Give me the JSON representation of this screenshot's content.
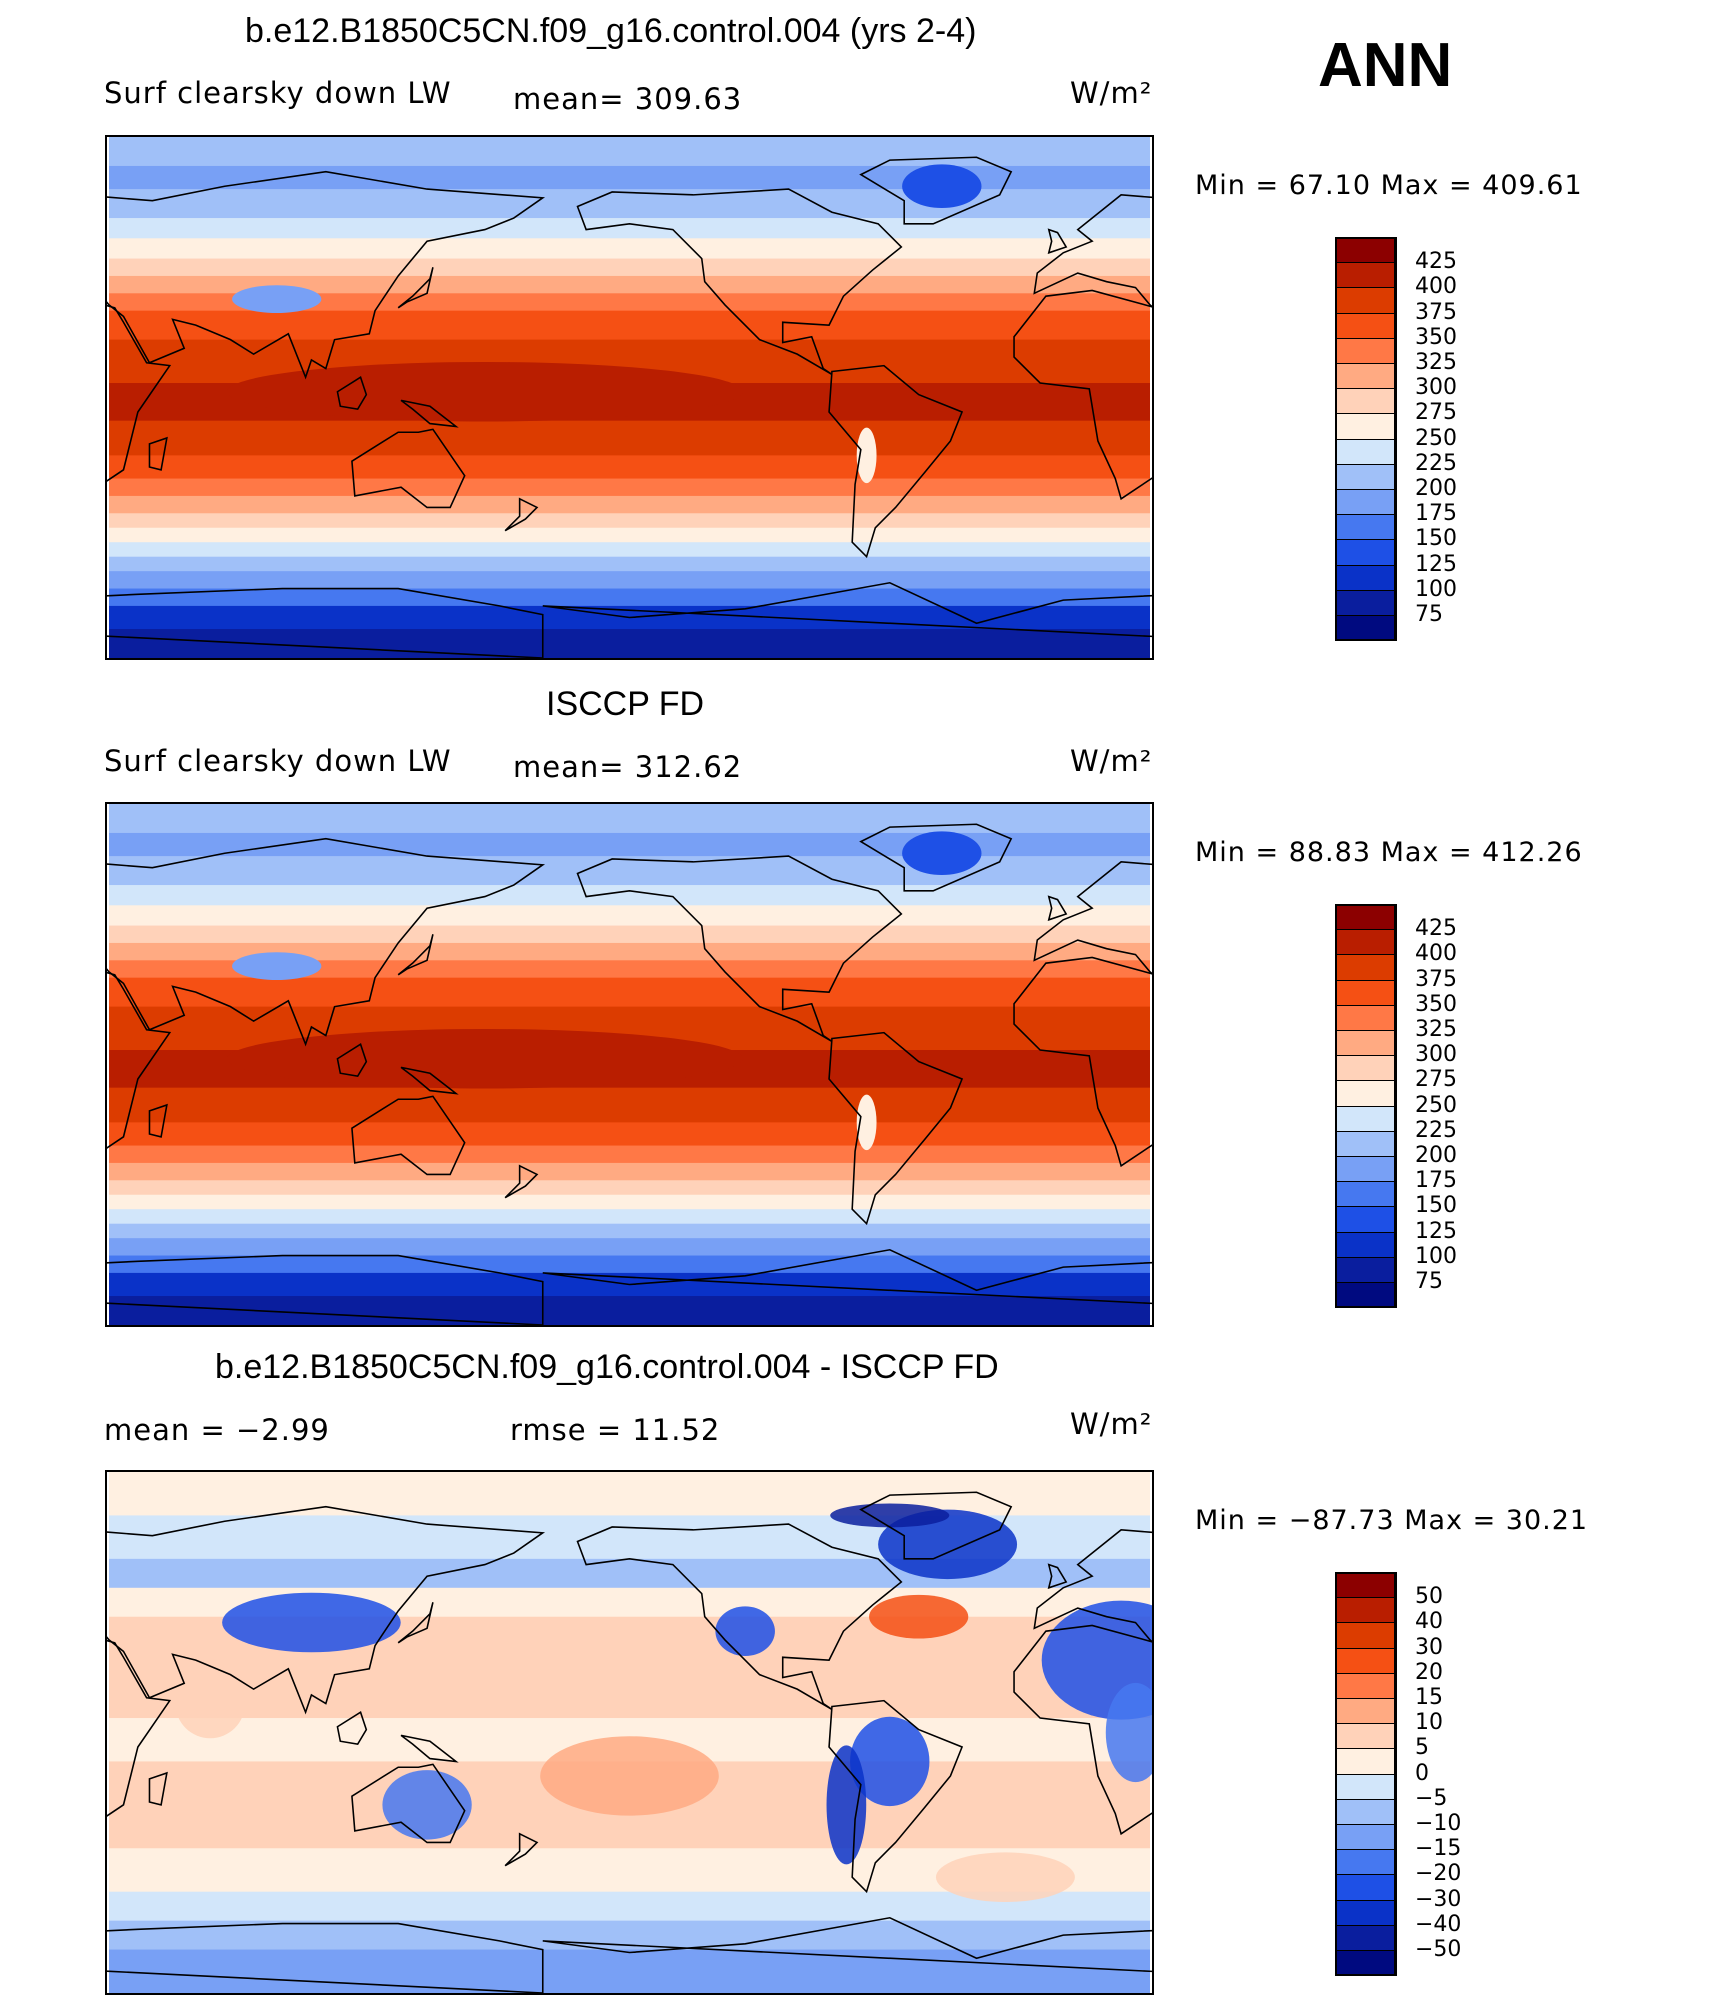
{
  "season": "ANN",
  "panels": [
    {
      "title": "b.e12.B1850C5CN.f09_g16.control.004 (yrs 2-4)",
      "left_label": "Surf clearsky down LW",
      "center_label": "mean= 309.63",
      "units": "W/m²",
      "minmax": "Min =   67.10  Max  =  409.61",
      "field": "absolute",
      "colorbar_labels": [
        "425",
        "400",
        "375",
        "350",
        "325",
        "300",
        "275",
        "250",
        "225",
        "200",
        "175",
        "150",
        "125",
        "100",
        "75"
      ]
    },
    {
      "title": "ISCCP FD",
      "left_label": "Surf clearsky down LW",
      "center_label": "mean= 312.62",
      "units": "W/m²",
      "minmax": "Min =   88.83  Max  =  412.26",
      "field": "absolute",
      "colorbar_labels": [
        "425",
        "400",
        "375",
        "350",
        "325",
        "300",
        "275",
        "250",
        "225",
        "200",
        "175",
        "150",
        "125",
        "100",
        "75"
      ]
    },
    {
      "title": "b.e12.B1850C5CN.f09_g16.control.004 - ISCCP FD",
      "left_label": "mean =    −2.99",
      "center_label": "rmse =    11.52",
      "units": "W/m²",
      "minmax": "Min  =  −87.73  Max  =    30.21",
      "field": "difference",
      "colorbar_labels": [
        "50",
        "40",
        "30",
        "20",
        "15",
        "10",
        "5",
        "0",
        "−5",
        "−10",
        "−15",
        "−20",
        "−30",
        "−40",
        "−50"
      ]
    }
  ],
  "colors": {
    "palette": [
      "#000a80",
      "#0a1e9e",
      "#0a32c8",
      "#1e50e6",
      "#4678f0",
      "#78a0f5",
      "#a0c0f8",
      "#d2e6fa",
      "#fff0e1",
      "#ffd2b9",
      "#ffaa82",
      "#ff7846",
      "#f55014",
      "#dc3c00",
      "#b91e00",
      "#8c0000"
    ],
    "coastline": "#000000"
  }
}
